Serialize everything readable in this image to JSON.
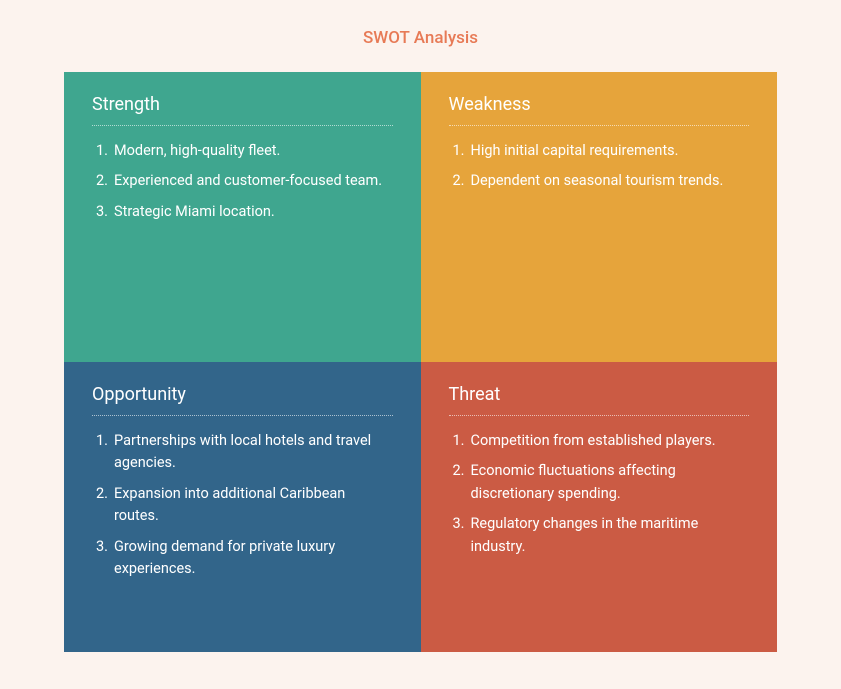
{
  "title": "SWOT Analysis",
  "background_color": "#fcf3ee",
  "title_color": "#e77a56",
  "title_fontsize": 17,
  "text_color": "#ffffff",
  "heading_fontsize": 18,
  "item_fontsize": 14.5,
  "divider_style": "dotted",
  "quadrants": {
    "strength": {
      "label": "Strength",
      "bg": "#3fa68f",
      "items": [
        "Modern, high-quality fleet.",
        "Experienced and customer-focused team.",
        "Strategic Miami location."
      ]
    },
    "weakness": {
      "label": "Weakness",
      "bg": "#e6a43b",
      "items": [
        "High initial capital requirements.",
        "Dependent on seasonal tourism trends."
      ]
    },
    "opportunity": {
      "label": "Opportunity",
      "bg": "#32658a",
      "items": [
        "Partnerships with local hotels and travel agencies.",
        "Expansion into additional Caribbean routes.",
        "Growing demand for private luxury experiences."
      ]
    },
    "threat": {
      "label": "Threat",
      "bg": "#cb5b44",
      "items": [
        "Competition from established players.",
        "Economic fluctuations affecting discretionary spending.",
        "Regulatory changes in the maritime industry."
      ]
    }
  }
}
